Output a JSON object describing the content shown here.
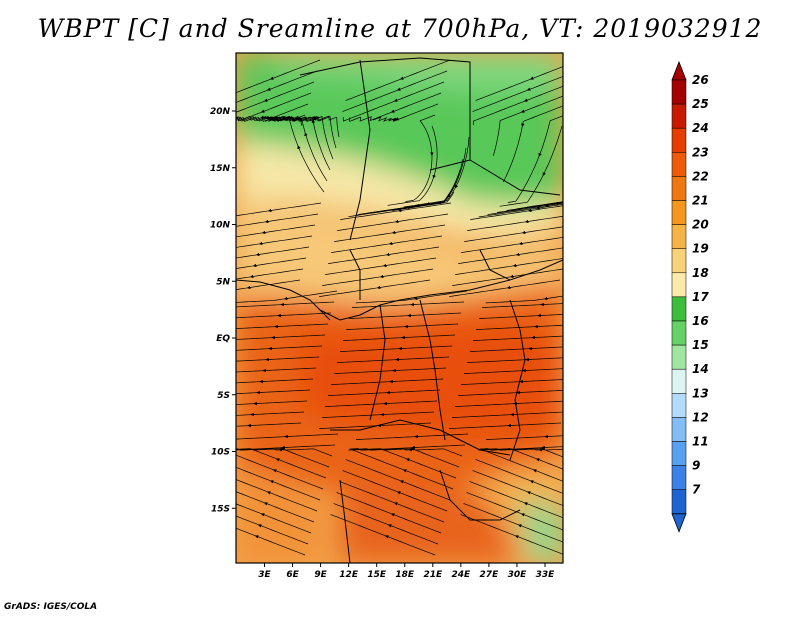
{
  "title": "WBPT [C] and Sreamline at 700hPa, VT: 2019032912",
  "credit": "GrADS: IGES/COLA",
  "lat_ticks": [
    "20N",
    "15N",
    "10N",
    "5N",
    "EQ",
    "5S",
    "10S",
    "15S"
  ],
  "lat_values": [
    20,
    15,
    10,
    5,
    0,
    -5,
    -10,
    -15
  ],
  "lon_ticks": [
    "3E",
    "6E",
    "9E",
    "12E",
    "15E",
    "18E",
    "21E",
    "24E",
    "27E",
    "30E",
    "33E"
  ],
  "lon_values": [
    3,
    6,
    9,
    12,
    15,
    18,
    21,
    24,
    27,
    30,
    33
  ],
  "colorbar": {
    "labels": [
      "26",
      "25",
      "24",
      "23",
      "22",
      "21",
      "20",
      "19",
      "18",
      "17",
      "16",
      "15",
      "14",
      "13",
      "12",
      "11",
      "9",
      "7"
    ],
    "colors": [
      "#a50000",
      "#c81a00",
      "#e63c00",
      "#ec5a0a",
      "#f07814",
      "#f5961e",
      "#f5b446",
      "#f8d278",
      "#faebaa",
      "#3cbe3c",
      "#64d264",
      "#a0e6a0",
      "#dcf5f0",
      "#b4dcfa",
      "#82bef5",
      "#5aa0f0",
      "#3c82e6",
      "#1e64d2"
    ],
    "top_color": "#a50000",
    "bottom_color": "#1e64d2"
  }
}
